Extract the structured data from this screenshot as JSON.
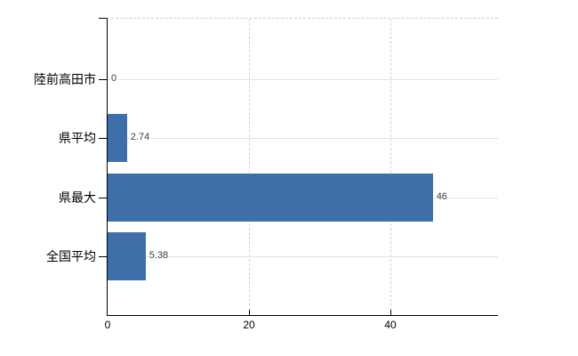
{
  "chart_data": {
    "type": "bar",
    "orientation": "horizontal",
    "title": "",
    "xlabel": "",
    "ylabel": "",
    "categories": [
      "陸前高田市",
      "県平均",
      "県最大",
      "全国平均"
    ],
    "values": [
      0,
      2.74,
      46,
      5.38
    ],
    "value_labels": [
      "0",
      "2.74",
      "46",
      "5.38"
    ],
    "x_ticks": [
      0,
      20,
      40
    ],
    "x_tick_labels": [
      "0",
      "20",
      "40"
    ],
    "xlim": [
      0,
      55.2
    ],
    "legend": "none",
    "grid": {
      "horizontal": "solid",
      "vertical": "dashed"
    },
    "colors": {
      "bar": "#3e6fa9",
      "axis": "#000000",
      "gridline_horizontal": "#dde4da",
      "gridline_vertical": "#d6d2d6",
      "plot_top_border": "#cfcccf",
      "category_label": "#000000",
      "value_label": "#3c3c3c",
      "tick_label": "#000000",
      "background": "#ffffff"
    }
  }
}
